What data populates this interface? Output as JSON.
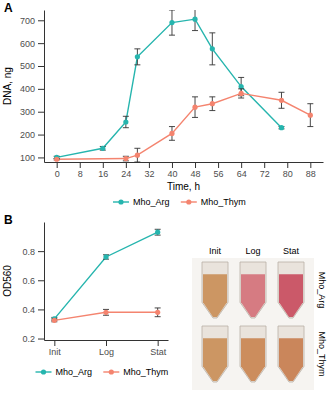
{
  "chart_data": [
    {
      "type": "line",
      "title": "A",
      "x_label": "Time, h",
      "y_label": "DNA, ng",
      "xlim": [
        -4.4,
        92.4
      ],
      "xticks": [
        0,
        8,
        16,
        24,
        32,
        40,
        48,
        56,
        64,
        72,
        80,
        88
      ],
      "ylim": [
        80,
        745
      ],
      "yticks": [
        100,
        200,
        300,
        400,
        500,
        600,
        700
      ],
      "grid": false,
      "legend": "bottom",
      "marker": "circle",
      "series": [
        {
          "name": "Mho_Arg",
          "color": "#26b5ae",
          "x": [
            0,
            16,
            24,
            28,
            40,
            48,
            54,
            64,
            78
          ],
          "values": [
            100,
            140,
            255,
            540,
            690,
            705,
            575,
            410,
            230
          ],
          "errors": [
            5,
            8,
            25,
            35,
            55,
            50,
            70,
            40,
            5
          ]
        },
        {
          "name": "Mho_Thym",
          "color": "#f4846f",
          "x": [
            0,
            24,
            28,
            40,
            48,
            54,
            64,
            78,
            88
          ],
          "values": [
            92,
            95,
            110,
            205,
            320,
            335,
            380,
            350,
            285
          ],
          "errors": [
            3,
            10,
            30,
            30,
            45,
            30,
            20,
            35,
            50
          ]
        }
      ]
    },
    {
      "type": "line",
      "title": "B",
      "y_label": "OD560",
      "categories": [
        "Init",
        "Log",
        "Stat"
      ],
      "ylim": [
        0.19,
        1.0
      ],
      "yticks": [
        0.2,
        0.4,
        0.6,
        0.8
      ],
      "grid": false,
      "legend": "bottom",
      "marker": "circle",
      "series": [
        {
          "name": "Mho_Arg",
          "color": "#26b5ae",
          "values": [
            0.335,
            0.76,
            0.93
          ],
          "errors": [
            0.01,
            0.015,
            0.02
          ]
        },
        {
          "name": "Mho_Thym",
          "color": "#f4846f",
          "values": [
            0.325,
            0.38,
            0.38
          ],
          "errors": [
            0.01,
            0.02,
            0.03
          ]
        }
      ]
    }
  ],
  "photo": {
    "columns": [
      "Init",
      "Log",
      "Stat"
    ],
    "rows": [
      "Mho_Arg",
      "Mho_Thym"
    ]
  }
}
